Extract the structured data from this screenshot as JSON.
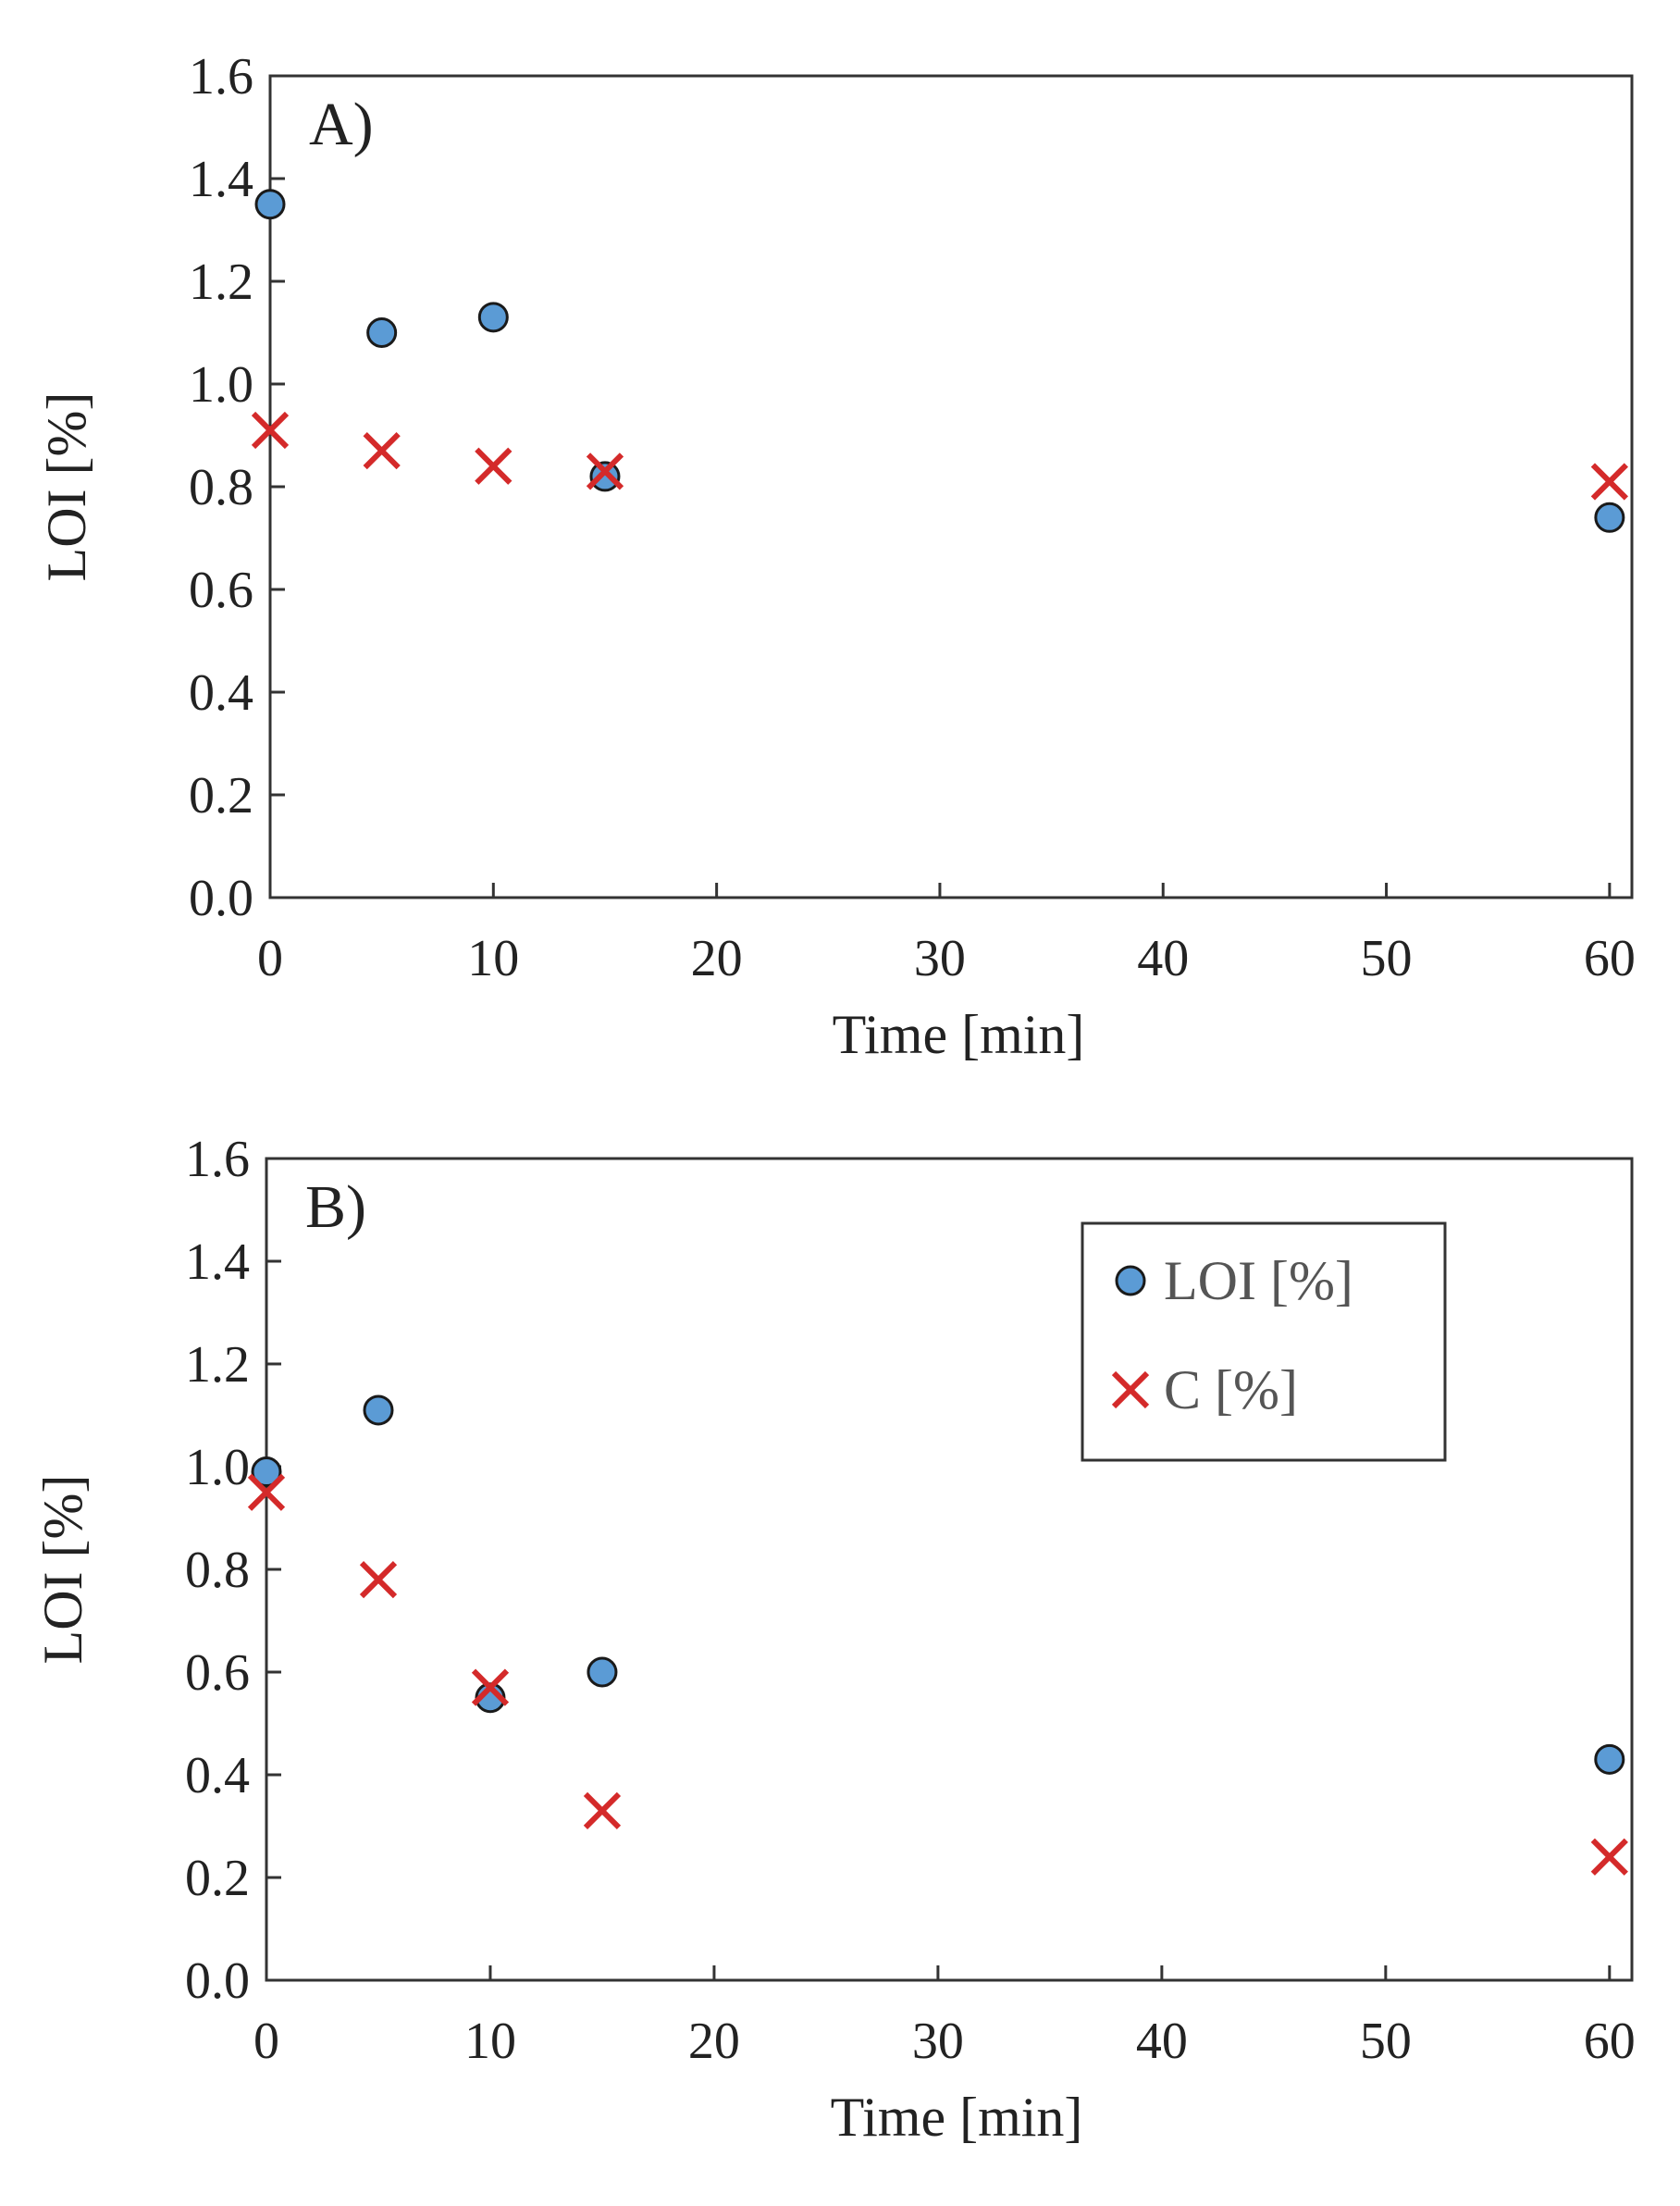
{
  "chart_data": [
    {
      "type": "scatter",
      "panel_label": "A)",
      "xlabel": "Time [min]",
      "ylabel": "LOI [%]",
      "xlim": [
        0,
        61
      ],
      "ylim": [
        0,
        1.6
      ],
      "xticks": [
        0,
        10,
        20,
        30,
        40,
        50,
        60
      ],
      "yticks": [
        0.0,
        0.2,
        0.4,
        0.6,
        0.8,
        1.0,
        1.2,
        1.4,
        1.6
      ],
      "xtick_labels": [
        "0",
        "10",
        "20",
        "30",
        "40",
        "50",
        "60"
      ],
      "ytick_labels": [
        "0.0",
        "0.2",
        "0.4",
        "0.6",
        "0.8",
        "1.0",
        "1.2",
        "1.4",
        "1.6"
      ],
      "grid": false,
      "legend": null,
      "series": [
        {
          "name": "LOI [%]",
          "marker": "circle",
          "color": "#5b9bd5",
          "x": [
            0,
            5,
            10,
            15,
            60
          ],
          "y": [
            1.35,
            1.1,
            1.13,
            0.82,
            0.74
          ]
        },
        {
          "name": "C [%]",
          "marker": "x",
          "color": "#d42a2a",
          "x": [
            0,
            5,
            10,
            15,
            60
          ],
          "y": [
            0.91,
            0.87,
            0.84,
            0.83,
            0.81
          ]
        }
      ]
    },
    {
      "type": "scatter",
      "panel_label": "B)",
      "xlabel": "Time [min]",
      "ylabel": "LOI [%]",
      "xlim": [
        0,
        61
      ],
      "ylim": [
        0,
        1.6
      ],
      "xticks": [
        0,
        10,
        20,
        30,
        40,
        50,
        60
      ],
      "yticks": [
        0.0,
        0.2,
        0.4,
        0.6,
        0.8,
        1.0,
        1.2,
        1.4,
        1.6
      ],
      "xtick_labels": [
        "0",
        "10",
        "20",
        "30",
        "40",
        "50",
        "60"
      ],
      "ytick_labels": [
        "0.0",
        "0.2",
        "0.4",
        "0.6",
        "0.8",
        "1.0",
        "1.2",
        "1.4",
        "1.6"
      ],
      "grid": false,
      "legend": {
        "position": "top-right",
        "entries": [
          "LOI [%]",
          "C [%]"
        ]
      },
      "series": [
        {
          "name": "LOI [%]",
          "marker": "circle",
          "color": "#5b9bd5",
          "x": [
            0,
            5,
            10,
            15,
            60
          ],
          "y": [
            0.99,
            1.11,
            0.55,
            0.6,
            0.43
          ]
        },
        {
          "name": "C [%]",
          "marker": "x",
          "color": "#d42a2a",
          "x": [
            0,
            5,
            10,
            15,
            60
          ],
          "y": [
            0.95,
            0.78,
            0.57,
            0.33,
            0.24
          ]
        }
      ]
    }
  ]
}
